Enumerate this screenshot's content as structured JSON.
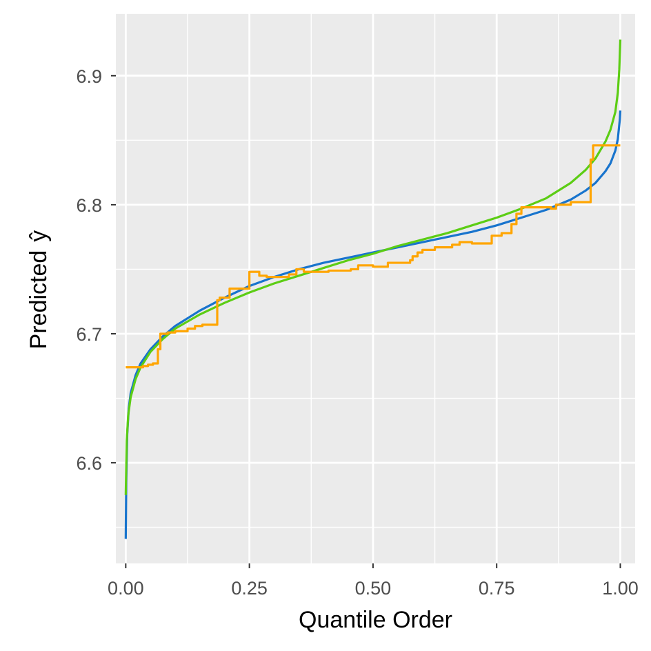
{
  "chart_data": {
    "type": "line",
    "xlabel": "Quantile Order",
    "ylabel": "Predicted",
    "ylabel_symbol": "ŷ",
    "xlim": [
      -0.02,
      1.03
    ],
    "ylim": [
      6.522,
      6.948
    ],
    "x_ticks": [
      0.0,
      0.25,
      0.5,
      0.75,
      1.0
    ],
    "x_tick_labels": [
      "0.00",
      "0.25",
      "0.50",
      "0.75",
      "1.00"
    ],
    "y_ticks": [
      6.6,
      6.7,
      6.8,
      6.9
    ],
    "y_tick_labels": [
      "6.6",
      "6.7",
      "6.8",
      "6.9"
    ],
    "x_minor_ticks": [
      0.125,
      0.375,
      0.625,
      0.875
    ],
    "y_minor_ticks": [
      6.55,
      6.65,
      6.75,
      6.85
    ],
    "grid": true,
    "legend": "none",
    "background": "#ebebeb",
    "series": [
      {
        "color": "#1874cd",
        "x": [
          0.0,
          0.001,
          0.003,
          0.006,
          0.01,
          0.02,
          0.03,
          0.05,
          0.075,
          0.1,
          0.15,
          0.2,
          0.25,
          0.3,
          0.35,
          0.4,
          0.45,
          0.5,
          0.55,
          0.6,
          0.65,
          0.7,
          0.75,
          0.8,
          0.85,
          0.9,
          0.93,
          0.95,
          0.97,
          0.98,
          0.99,
          0.995,
          0.999,
          1.0
        ],
        "y": [
          6.541,
          6.585,
          6.622,
          6.642,
          6.654,
          6.668,
          6.677,
          6.688,
          6.698,
          6.706,
          6.718,
          6.728,
          6.737,
          6.744,
          6.75,
          6.755,
          6.759,
          6.763,
          6.767,
          6.771,
          6.775,
          6.779,
          6.784,
          6.79,
          6.796,
          6.804,
          6.811,
          6.817,
          6.826,
          6.832,
          6.842,
          6.851,
          6.866,
          6.873
        ]
      },
      {
        "color": "#5ccd14",
        "x": [
          0.0,
          0.002,
          0.005,
          0.01,
          0.02,
          0.03,
          0.05,
          0.075,
          0.1,
          0.15,
          0.2,
          0.25,
          0.3,
          0.35,
          0.4,
          0.45,
          0.5,
          0.55,
          0.6,
          0.65,
          0.7,
          0.75,
          0.8,
          0.85,
          0.9,
          0.93,
          0.95,
          0.97,
          0.98,
          0.99,
          0.995,
          0.998,
          1.0
        ],
        "y": [
          6.575,
          6.617,
          6.637,
          6.651,
          6.665,
          6.674,
          6.686,
          6.696,
          6.704,
          6.715,
          6.724,
          6.732,
          6.739,
          6.745,
          6.751,
          6.757,
          6.762,
          6.768,
          6.773,
          6.778,
          6.784,
          6.79,
          6.797,
          6.805,
          6.817,
          6.827,
          6.836,
          6.849,
          6.858,
          6.872,
          6.887,
          6.905,
          6.928
        ]
      },
      {
        "color": "#ffa500",
        "x": [
          0.0,
          0.035,
          0.035,
          0.045,
          0.045,
          0.055,
          0.055,
          0.065,
          0.065,
          0.07,
          0.07,
          0.085,
          0.085,
          0.1,
          0.1,
          0.125,
          0.125,
          0.14,
          0.14,
          0.155,
          0.155,
          0.185,
          0.185,
          0.19,
          0.19,
          0.21,
          0.21,
          0.25,
          0.25,
          0.27,
          0.27,
          0.285,
          0.285,
          0.33,
          0.33,
          0.345,
          0.345,
          0.36,
          0.36,
          0.41,
          0.41,
          0.455,
          0.455,
          0.47,
          0.47,
          0.5,
          0.5,
          0.53,
          0.53,
          0.575,
          0.575,
          0.58,
          0.58,
          0.59,
          0.59,
          0.6,
          0.6,
          0.625,
          0.625,
          0.66,
          0.66,
          0.675,
          0.675,
          0.7,
          0.7,
          0.74,
          0.74,
          0.76,
          0.76,
          0.78,
          0.78,
          0.79,
          0.79,
          0.8,
          0.8,
          0.86,
          0.86,
          0.87,
          0.87,
          0.9,
          0.9,
          0.94,
          0.94,
          0.945,
          0.945,
          1.0
        ],
        "y": [
          6.674,
          6.674,
          6.675,
          6.675,
          6.676,
          6.676,
          6.677,
          6.677,
          6.688,
          6.688,
          6.7,
          6.7,
          6.701,
          6.701,
          6.702,
          6.702,
          6.704,
          6.704,
          6.706,
          6.706,
          6.707,
          6.707,
          6.726,
          6.726,
          6.728,
          6.728,
          6.735,
          6.735,
          6.748,
          6.748,
          6.745,
          6.745,
          6.744,
          6.744,
          6.746,
          6.746,
          6.75,
          6.75,
          6.748,
          6.748,
          6.749,
          6.749,
          6.75,
          6.75,
          6.753,
          6.753,
          6.752,
          6.752,
          6.755,
          6.755,
          6.757,
          6.757,
          6.76,
          6.76,
          6.763,
          6.763,
          6.765,
          6.765,
          6.767,
          6.767,
          6.769,
          6.769,
          6.771,
          6.771,
          6.77,
          6.77,
          6.776,
          6.776,
          6.778,
          6.778,
          6.785,
          6.785,
          6.793,
          6.793,
          6.798,
          6.798,
          6.797,
          6.797,
          6.8,
          6.8,
          6.802,
          6.802,
          6.835,
          6.835,
          6.846,
          6.846
        ]
      }
    ]
  }
}
